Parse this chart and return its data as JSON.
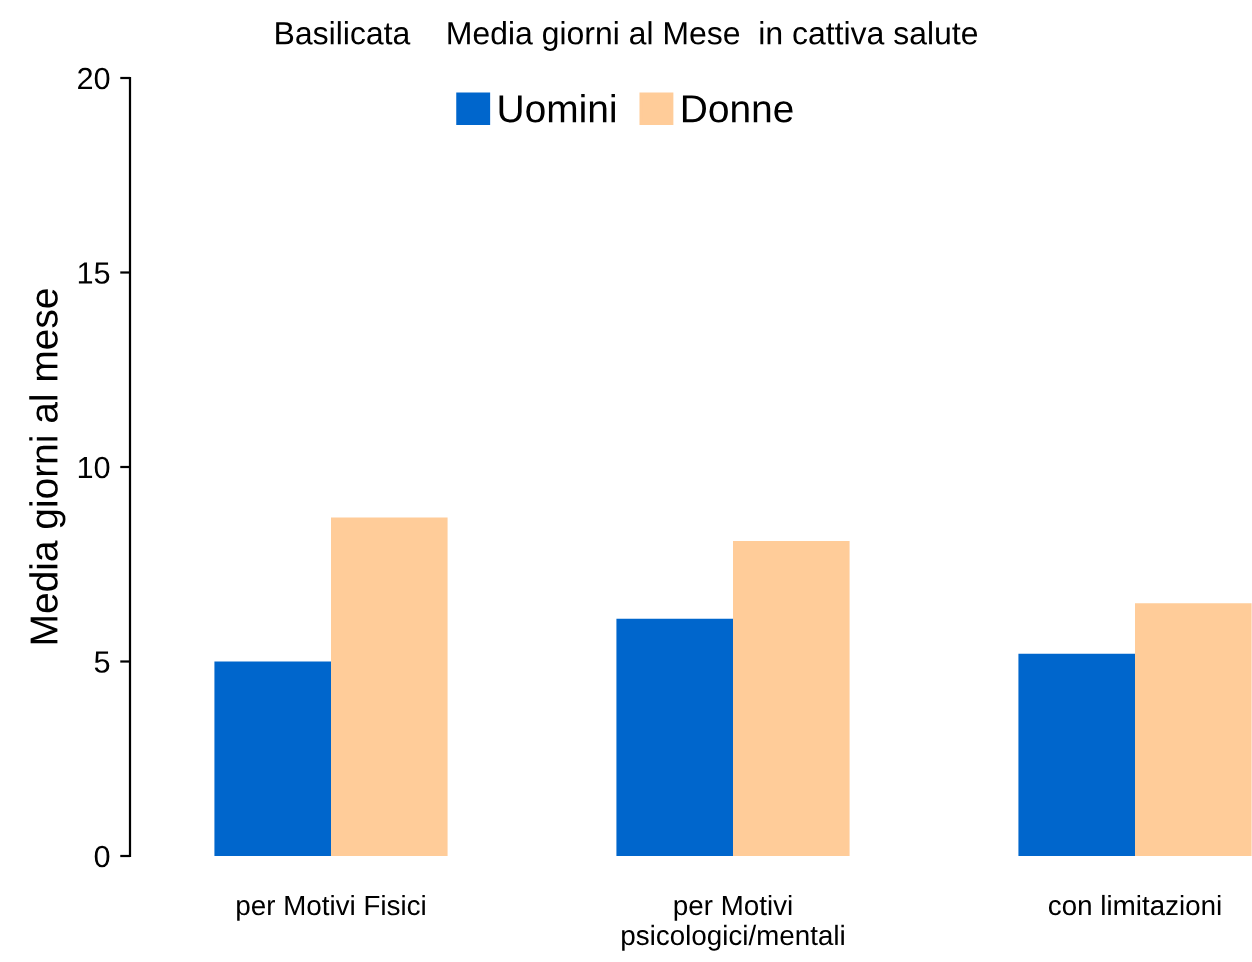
{
  "chart_data": {
    "type": "bar",
    "title": "Basilicata    Media giorni al Mese  in cattiva salute",
    "ylabel": "Media giorni al mese",
    "categories": [
      "per Motivi Fisici",
      "per Motivi\npsicologici/mentali",
      "con limitazioni"
    ],
    "series": [
      {
        "name": "Uomini",
        "color": "#0066cc",
        "values": [
          5.0,
          6.1,
          5.2
        ]
      },
      {
        "name": "Donne",
        "color": "#ffcc99",
        "values": [
          8.7,
          8.1,
          6.5
        ]
      }
    ],
    "ylim": [
      0,
      20
    ],
    "yticks": [
      0,
      5,
      10,
      15,
      20
    ],
    "grid": false,
    "legend": "top"
  }
}
